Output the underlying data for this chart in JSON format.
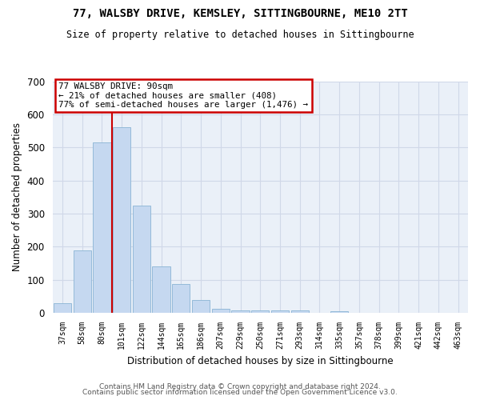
{
  "title": "77, WALSBY DRIVE, KEMSLEY, SITTINGBOURNE, ME10 2TT",
  "subtitle": "Size of property relative to detached houses in Sittingbourne",
  "xlabel": "Distribution of detached houses by size in Sittingbourne",
  "ylabel": "Number of detached properties",
  "footer1": "Contains HM Land Registry data © Crown copyright and database right 2024.",
  "footer2": "Contains public sector information licensed under the Open Government Licence v3.0.",
  "categories": [
    "37sqm",
    "58sqm",
    "80sqm",
    "101sqm",
    "122sqm",
    "144sqm",
    "165sqm",
    "186sqm",
    "207sqm",
    "229sqm",
    "250sqm",
    "271sqm",
    "293sqm",
    "314sqm",
    "335sqm",
    "357sqm",
    "378sqm",
    "399sqm",
    "421sqm",
    "442sqm",
    "463sqm"
  ],
  "values": [
    30,
    190,
    515,
    560,
    325,
    140,
    88,
    40,
    12,
    8,
    8,
    8,
    8,
    0,
    5,
    0,
    0,
    0,
    0,
    0,
    0
  ],
  "bar_color": "#c5d8f0",
  "bar_edge_color": "#8ab4d4",
  "grid_color": "#d0d8e8",
  "bg_color": "#eaf0f8",
  "annotation_line1": "77 WALSBY DRIVE: 90sqm",
  "annotation_line2": "← 21% of detached houses are smaller (408)",
  "annotation_line3": "77% of semi-detached houses are larger (1,476) →",
  "annotation_box_color": "#ffffff",
  "annotation_box_edge": "#cc0000",
  "vline_color": "#cc0000",
  "vline_position": 2.5,
  "ylim": [
    0,
    700
  ],
  "yticks": [
    0,
    100,
    200,
    300,
    400,
    500,
    600,
    700
  ]
}
